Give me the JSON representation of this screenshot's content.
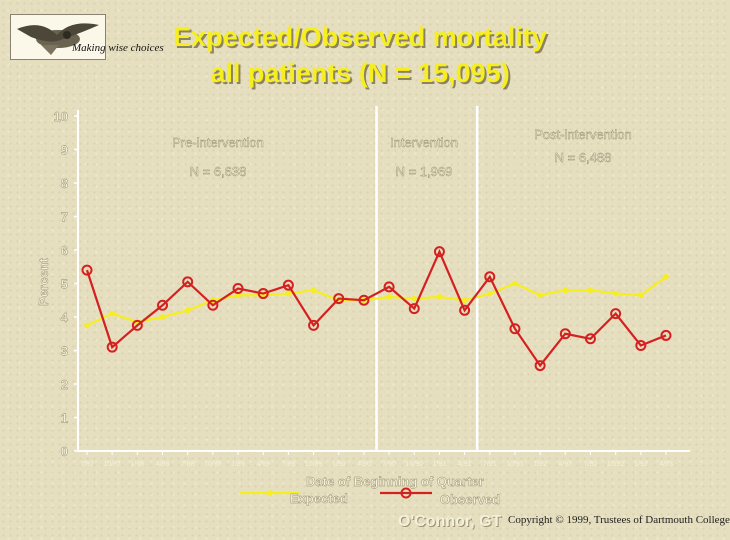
{
  "header": {
    "logo_caption": "Making wise choices",
    "title_line1": "Expected/Observed mortality",
    "title_line2": "all patients (N = 15,095)"
  },
  "chart_data": {
    "type": "line",
    "title": "Expected/Observed mortality all patients (N = 15,095)",
    "xlabel": "Date of Beginning of Quarter",
    "ylabel": "Percent",
    "ylim": [
      0,
      10
    ],
    "yticks": [
      "0",
      "1",
      "2",
      "3",
      "4",
      "5",
      "6",
      "7",
      "8",
      "9",
      "10"
    ],
    "categories": [
      "7/87",
      "10/87",
      "1/88",
      "4/88",
      "7/88",
      "10/88",
      "1/89",
      "4/89",
      "7/89",
      "10/89",
      "1/90",
      "4/90",
      "7/90",
      "10/90",
      "1/91",
      "4/91",
      "7/91",
      "10/91",
      "1/92",
      "4/92",
      "7/92",
      "10/92",
      "1/93",
      "4/93"
    ],
    "series": [
      {
        "name": "Expected",
        "color": "#f6ee1e",
        "marker": "dot",
        "values": [
          3.75,
          4.1,
          3.85,
          4.0,
          4.2,
          4.5,
          4.65,
          4.65,
          4.7,
          4.8,
          4.5,
          4.5,
          4.6,
          4.55,
          4.6,
          4.5,
          4.7,
          5.0,
          4.65,
          4.8,
          4.8,
          4.7,
          4.65,
          5.2
        ]
      },
      {
        "name": "Observed",
        "color": "#d42020",
        "marker": "open-circle",
        "values": [
          5.4,
          3.1,
          3.75,
          4.35,
          5.05,
          4.35,
          4.85,
          4.7,
          4.95,
          3.75,
          4.55,
          4.5,
          4.9,
          4.25,
          5.95,
          4.2,
          5.2,
          3.65,
          2.55,
          3.5,
          3.35,
          4.1,
          3.15,
          3.45
        ]
      }
    ],
    "dividers_after_category": [
      "4/90",
      "4/91"
    ],
    "phases": [
      {
        "name": "Pre-intervention",
        "n": "N = 6,638"
      },
      {
        "name": "Intervention",
        "n": "N = 1,969"
      },
      {
        "name": "Post-intervention",
        "n": "N = 6,488"
      }
    ],
    "grid": false,
    "legend_position": "bottom"
  },
  "footer": {
    "author": "O'Connor, GT",
    "copyright": "Copyright © 1999, Trustees of Dartmouth College"
  }
}
